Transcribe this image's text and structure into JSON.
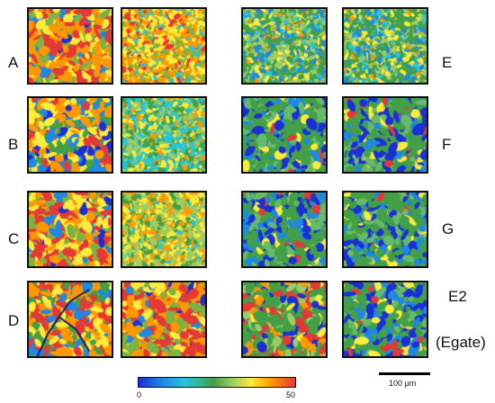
{
  "rows_left": [
    "A",
    "B",
    "C",
    "D"
  ],
  "rows_right": [
    "E",
    "F",
    "G",
    "E2",
    "(Egate)"
  ],
  "colorbar": {
    "min": "0",
    "max": "50",
    "colors": [
      "#1a2fd6",
      "#1e88e5",
      "#26c6da",
      "#43a047",
      "#9ccc65",
      "#ffeb3b",
      "#ff9800",
      "#e53935"
    ]
  },
  "scale_bar": {
    "label": "100 µm"
  },
  "tiles": [
    {
      "name": "tile-a-1",
      "palette": "warm-rough"
    },
    {
      "name": "tile-a-2",
      "palette": "warm-fine"
    },
    {
      "name": "tile-e-1",
      "palette": "green-fine"
    },
    {
      "name": "tile-e-2",
      "palette": "green-fine"
    },
    {
      "name": "tile-b-1",
      "palette": "mixed-rough"
    },
    {
      "name": "tile-b-2",
      "palette": "teal-fine"
    },
    {
      "name": "tile-f-1",
      "palette": "green-blue"
    },
    {
      "name": "tile-f-2",
      "palette": "green-blue"
    },
    {
      "name": "tile-c-1",
      "palette": "warm-rough"
    },
    {
      "name": "tile-c-2",
      "palette": "yellow-fine"
    },
    {
      "name": "tile-g-1",
      "palette": "green-blue"
    },
    {
      "name": "tile-g-2",
      "palette": "green-blue"
    },
    {
      "name": "tile-d-1",
      "palette": "cracked"
    },
    {
      "name": "tile-d-2",
      "palette": "warm-rough"
    },
    {
      "name": "tile-e2-1",
      "palette": "green-red"
    },
    {
      "name": "tile-e2-2",
      "palette": "green-blue"
    }
  ]
}
